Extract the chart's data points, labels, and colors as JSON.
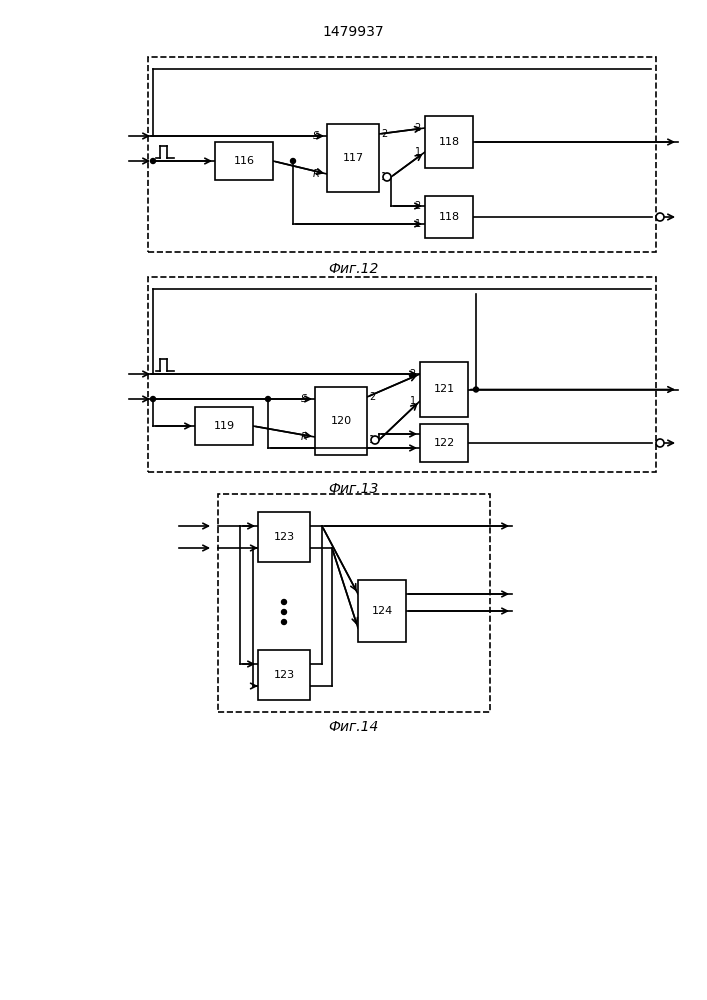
{
  "title": "1479937",
  "fig12_label": "Фиг.12",
  "fig13_label": "Фиг.13",
  "fig14_label": "Фиг.14",
  "bg_color": "#ffffff",
  "line_color": "#000000"
}
